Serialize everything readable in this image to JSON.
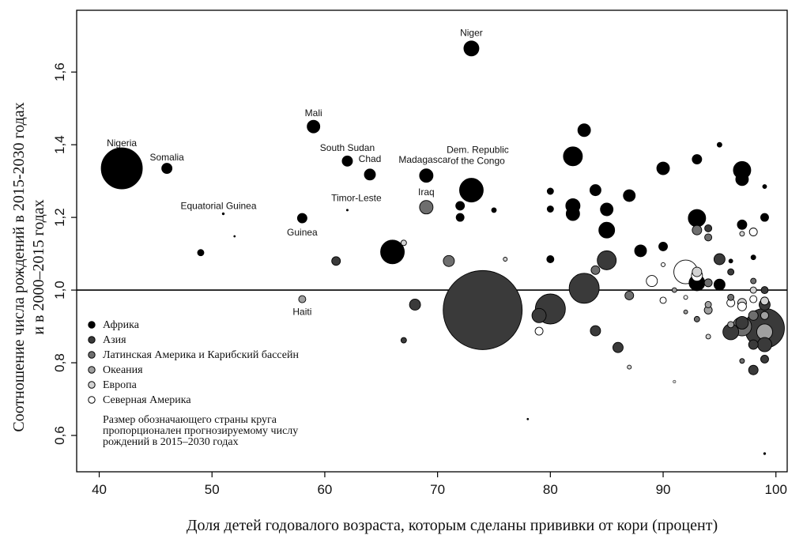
{
  "chart_data": {
    "type": "scatter",
    "title": "",
    "xlabel": "Доля детей годовалого возраста, которым сделаны прививки от кори (процент)",
    "ylabel": [
      "Соотношение числа рождений в 2015-2030 годах",
      "и в 2000–2015 годах"
    ],
    "xlim": [
      38,
      101
    ],
    "ylim": [
      0.5,
      1.77
    ],
    "x_ticks": [
      40,
      50,
      60,
      70,
      80,
      90,
      100
    ],
    "y_ticks": [
      0.6,
      0.8,
      1.0,
      1.2,
      1.4,
      1.6
    ],
    "x_tick_labels": [
      "40",
      "50",
      "60",
      "70",
      "80",
      "90",
      "100"
    ],
    "y_tick_labels": [
      "0,6",
      "0,8",
      "1,0",
      "1,2",
      "1,4",
      "1,6"
    ],
    "reference_line_y": 1.0,
    "grid": false,
    "legend_position": "bottom-left",
    "colors": {
      "africa": "#000000",
      "asia": "#3a3a3a",
      "latin_america": "#6e6e6e",
      "oceania": "#a0a0a0",
      "europe": "#d2d2d2",
      "north_america": "#ffffff"
    },
    "legend": [
      {
        "key": "africa",
        "label": "Африка"
      },
      {
        "key": "asia",
        "label": "Азия"
      },
      {
        "key": "latin_america",
        "label": "Латинская Америка и Карибский бассейн"
      },
      {
        "key": "oceania",
        "label": "Океания"
      },
      {
        "key": "europe",
        "label": "Европа"
      },
      {
        "key": "north_america",
        "label": "Северная Америка"
      }
    ],
    "size_note": [
      "Размер обозначающего страны круга",
      "пропорционален прогнозируемому числу",
      "рождений в 2015–2030 годах"
    ],
    "series": [
      {
        "name": "Африка",
        "key": "africa",
        "points": [
          {
            "x": 42,
            "y": 1.335,
            "s": 26,
            "label": "Nigeria"
          },
          {
            "x": 46,
            "y": 1.335,
            "s": 6.5,
            "label": "Somalia"
          },
          {
            "x": 49,
            "y": 1.103,
            "s": 4
          },
          {
            "x": 51,
            "y": 1.21,
            "s": 1.5,
            "label": "Equatorial Guinea"
          },
          {
            "x": 58,
            "y": 1.198,
            "s": 6,
            "label": "Guinea"
          },
          {
            "x": 59,
            "y": 1.45,
            "s": 8,
            "label": "Mali"
          },
          {
            "x": 62,
            "y": 1.355,
            "s": 6.5,
            "label": "South Sudan"
          },
          {
            "x": 64,
            "y": 1.318,
            "s": 7,
            "label": "Chad"
          },
          {
            "x": 66,
            "y": 1.105,
            "s": 15
          },
          {
            "x": 69,
            "y": 1.315,
            "s": 8.5,
            "label": "Madagascar"
          },
          {
            "x": 72,
            "y": 1.232,
            "s": 5.5
          },
          {
            "x": 72,
            "y": 1.2,
            "s": 5
          },
          {
            "x": 73,
            "y": 1.275,
            "s": 15,
            "label": "Dem. Republic of the Congo"
          },
          {
            "x": 73,
            "y": 1.665,
            "s": 9.5,
            "label": "Niger"
          },
          {
            "x": 75,
            "y": 1.22,
            "s": 3
          },
          {
            "x": 80,
            "y": 1.223,
            "s": 4
          },
          {
            "x": 80,
            "y": 1.272,
            "s": 4
          },
          {
            "x": 80,
            "y": 1.085,
            "s": 4.5
          },
          {
            "x": 82,
            "y": 1.368,
            "s": 12
          },
          {
            "x": 82,
            "y": 1.232,
            "s": 9
          },
          {
            "x": 82,
            "y": 1.21,
            "s": 8.5
          },
          {
            "x": 83,
            "y": 1.44,
            "s": 8
          },
          {
            "x": 84,
            "y": 1.275,
            "s": 7
          },
          {
            "x": 85,
            "y": 1.222,
            "s": 8
          },
          {
            "x": 85,
            "y": 1.165,
            "s": 10
          },
          {
            "x": 87,
            "y": 1.26,
            "s": 7.5
          },
          {
            "x": 88,
            "y": 1.108,
            "s": 7.5
          },
          {
            "x": 90,
            "y": 1.335,
            "s": 8
          },
          {
            "x": 90,
            "y": 1.12,
            "s": 5.5
          },
          {
            "x": 93,
            "y": 1.36,
            "s": 6
          },
          {
            "x": 93,
            "y": 1.198,
            "s": 11
          },
          {
            "x": 93,
            "y": 1.02,
            "s": 10
          },
          {
            "x": 95,
            "y": 1.4,
            "s": 3
          },
          {
            "x": 95,
            "y": 1.015,
            "s": 7
          },
          {
            "x": 97,
            "y": 1.33,
            "s": 11
          },
          {
            "x": 97,
            "y": 1.305,
            "s": 8
          },
          {
            "x": 97,
            "y": 1.18,
            "s": 6
          },
          {
            "x": 99,
            "y": 1.2,
            "s": 5
          },
          {
            "x": 99,
            "y": 1.285,
            "s": 2.5
          },
          {
            "x": 96,
            "y": 1.08,
            "s": 2.5
          },
          {
            "x": 98,
            "y": 1.09,
            "s": 3
          },
          {
            "x": 99,
            "y": 0.55,
            "s": 1.5
          },
          {
            "x": 78,
            "y": 0.645,
            "s": 1.2
          },
          {
            "x": 52,
            "y": 1.148,
            "s": 1.2
          }
        ]
      },
      {
        "name": "Азия",
        "key": "asia",
        "points": [
          {
            "x": 61,
            "y": 1.08,
            "s": 5.5
          },
          {
            "x": 67,
            "y": 0.862,
            "s": 3.5
          },
          {
            "x": 68,
            "y": 0.96,
            "s": 7
          },
          {
            "x": 74,
            "y": 0.945,
            "s": 50
          },
          {
            "x": 80,
            "y": 0.948,
            "s": 19
          },
          {
            "x": 79,
            "y": 0.93,
            "s": 9
          },
          {
            "x": 83,
            "y": 1.005,
            "s": 19
          },
          {
            "x": 84,
            "y": 0.888,
            "s": 6.5
          },
          {
            "x": 85,
            "y": 1.082,
            "s": 12
          },
          {
            "x": 86,
            "y": 0.842,
            "s": 6.5
          },
          {
            "x": 95,
            "y": 1.085,
            "s": 7
          },
          {
            "x": 96,
            "y": 0.885,
            "s": 10
          },
          {
            "x": 97,
            "y": 0.91,
            "s": 8
          },
          {
            "x": 98,
            "y": 0.85,
            "s": 6
          },
          {
            "x": 98,
            "y": 0.78,
            "s": 6
          },
          {
            "x": 99,
            "y": 0.895,
            "s": 25
          },
          {
            "x": 99,
            "y": 0.96,
            "s": 7
          },
          {
            "x": 99,
            "y": 1.0,
            "s": 4.5
          },
          {
            "x": 99,
            "y": 0.85,
            "s": 9
          },
          {
            "x": 99,
            "y": 0.81,
            "s": 5
          },
          {
            "x": 94,
            "y": 1.17,
            "s": 4.5
          },
          {
            "x": 96,
            "y": 1.05,
            "s": 4
          }
        ]
      },
      {
        "name": "Латинская Америка и Карибский бассейн",
        "key": "latin_america",
        "points": [
          {
            "x": 69,
            "y": 1.228,
            "s": 8.5,
            "label": "Iraq"
          },
          {
            "x": 71,
            "y": 1.08,
            "s": 7
          },
          {
            "x": 84,
            "y": 1.055,
            "s": 5.5
          },
          {
            "x": 87,
            "y": 0.985,
            "s": 5.5
          },
          {
            "x": 93,
            "y": 1.165,
            "s": 6
          },
          {
            "x": 94,
            "y": 1.145,
            "s": 4.5
          },
          {
            "x": 93,
            "y": 0.92,
            "s": 3.5
          },
          {
            "x": 94,
            "y": 1.02,
            "s": 5
          },
          {
            "x": 96,
            "y": 0.98,
            "s": 4
          },
          {
            "x": 97,
            "y": 0.9,
            "s": 12
          },
          {
            "x": 98,
            "y": 0.93,
            "s": 6
          },
          {
            "x": 97,
            "y": 0.805,
            "s": 3
          },
          {
            "x": 98,
            "y": 1.025,
            "s": 3.5
          }
        ]
      },
      {
        "name": "Океания",
        "key": "oceania",
        "points": [
          {
            "x": 58,
            "y": 0.975,
            "s": 4.5,
            "label": "Haiti"
          },
          {
            "x": 91,
            "y": 1.0,
            "s": 3
          },
          {
            "x": 94,
            "y": 0.96,
            "s": 4
          },
          {
            "x": 94,
            "y": 0.945,
            "s": 5
          },
          {
            "x": 96,
            "y": 0.905,
            "s": 4
          },
          {
            "x": 99,
            "y": 0.885,
            "s": 10
          },
          {
            "x": 99,
            "y": 0.93,
            "s": 5
          },
          {
            "x": 92,
            "y": 0.94,
            "s": 2.5
          }
        ]
      },
      {
        "name": "Европа",
        "key": "europe",
        "points": [
          {
            "x": 67,
            "y": 1.13,
            "s": 3.5
          },
          {
            "x": 76,
            "y": 1.085,
            "s": 2.5
          },
          {
            "x": 87,
            "y": 0.788,
            "s": 2.5
          },
          {
            "x": 91,
            "y": 0.748,
            "s": 1.8
          },
          {
            "x": 93,
            "y": 1.05,
            "s": 6
          },
          {
            "x": 94,
            "y": 0.872,
            "s": 3
          },
          {
            "x": 97,
            "y": 0.965,
            "s": 5.5
          },
          {
            "x": 97,
            "y": 1.155,
            "s": 3
          },
          {
            "x": 98,
            "y": 1.0,
            "s": 4
          },
          {
            "x": 99,
            "y": 0.97,
            "s": 5
          }
        ]
      },
      {
        "name": "Северная Америка",
        "key": "north_america",
        "points": [
          {
            "x": 79,
            "y": 0.887,
            "s": 5
          },
          {
            "x": 89,
            "y": 1.025,
            "s": 7
          },
          {
            "x": 90,
            "y": 0.972,
            "s": 4
          },
          {
            "x": 90,
            "y": 1.07,
            "s": 2.5
          },
          {
            "x": 92,
            "y": 1.05,
            "s": 15
          },
          {
            "x": 93,
            "y": 1.04,
            "s": 7
          },
          {
            "x": 96,
            "y": 0.965,
            "s": 5
          },
          {
            "x": 97,
            "y": 0.955,
            "s": 5.5
          },
          {
            "x": 98,
            "y": 1.16,
            "s": 5
          },
          {
            "x": 98,
            "y": 0.975,
            "s": 4.5
          },
          {
            "x": 92,
            "y": 0.98,
            "s": 2.5
          }
        ]
      }
    ]
  }
}
